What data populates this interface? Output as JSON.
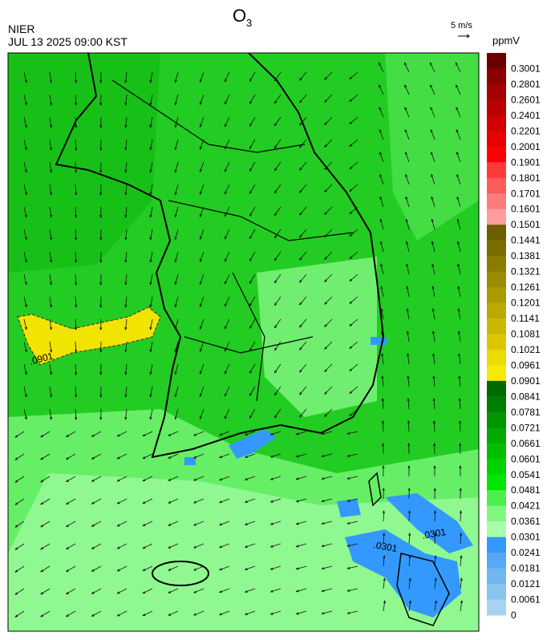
{
  "header": {
    "title": "O",
    "title_subscript": "3",
    "agency": "NIER",
    "datetime": "JUL 13 2025 09:00 KST"
  },
  "wind_scale": {
    "label": "5 m/s"
  },
  "colorbar": {
    "unit": "ppmV",
    "labels": [
      "0.3001",
      "0.2801",
      "0.2601",
      "0.2401",
      "0.2201",
      "0.2001",
      "0.1901",
      "0.1801",
      "0.1701",
      "0.1601",
      "0.1501",
      "0.1441",
      "0.1381",
      "0.1321",
      "0.1261",
      "0.1201",
      "0.1141",
      "0.1081",
      "0.1021",
      "0.0961",
      "0.0901",
      "0.0841",
      "0.0781",
      "0.0721",
      "0.0661",
      "0.0601",
      "0.0541",
      "0.0481",
      "0.0421",
      "0.0361",
      "0.0301",
      "0.0241",
      "0.0181",
      "0.0121",
      "0.0061",
      "0"
    ],
    "colors": [
      "#6b0000",
      "#8b0000",
      "#a30000",
      "#bb0000",
      "#d20000",
      "#e80000",
      "#ff0000",
      "#ff3a3a",
      "#ff5c5c",
      "#ff7c7c",
      "#ff9c9c",
      "#6b5f00",
      "#7a6d00",
      "#8a7c00",
      "#9a8b00",
      "#aa9a00",
      "#baa900",
      "#cab800",
      "#dac700",
      "#eadb00",
      "#f5ea00",
      "#006a00",
      "#007e00",
      "#009400",
      "#00aa00",
      "#00be00",
      "#00d400",
      "#00e800",
      "#4cf04c",
      "#80f880",
      "#a8ffa8",
      "#3399ff",
      "#55a8f5",
      "#70b6ef",
      "#88c4ee",
      "#a6d4f0"
    ]
  },
  "contour_labels": [
    ".0901",
    ".0301",
    ".0301"
  ]
}
